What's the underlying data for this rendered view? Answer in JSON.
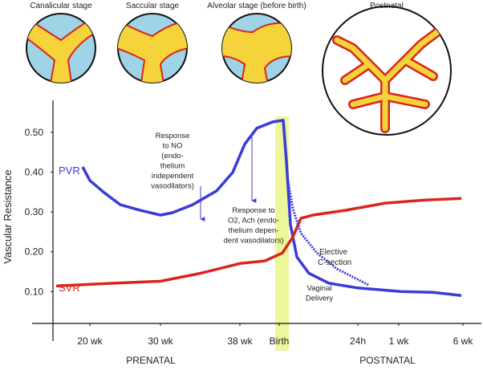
{
  "chart_data": {
    "type": "line",
    "y_label": "Vascular Resistance",
    "stages": [
      "Canalicular stage",
      "Saccular stage",
      "Alveolar stage (before birth)",
      "Postnatal"
    ],
    "xlim": [
      6.6,
      59.5
    ],
    "xticks": [
      {
        "value": 11.2,
        "label": "20 wk"
      },
      {
        "value": 20,
        "label": "30 wk"
      },
      {
        "value": 29.9,
        "label": "38 wk"
      },
      {
        "value": 34.8,
        "label": "Birth"
      },
      {
        "value": 44.6,
        "label": "24h"
      },
      {
        "value": 49.7,
        "label": "1 wk"
      },
      {
        "value": 57.7,
        "label": "6 wk"
      }
    ],
    "ylim": [
      0.02,
      0.55
    ],
    "yticks": [
      {
        "value": 0.1,
        "label": "0.10"
      },
      {
        "value": 0.2,
        "label": "0.20"
      },
      {
        "value": 0.3,
        "label": "0.30"
      },
      {
        "value": 0.4,
        "label": "0.40"
      },
      {
        "value": 0.5,
        "label": "0.50"
      }
    ],
    "period_labels": [
      "PRENATAL",
      "POSTNATAL"
    ],
    "series": [
      {
        "name": "PVR",
        "color": "#3b3bd9",
        "x": [
          10.3,
          11.2,
          13,
          15,
          17.5,
          20,
          21.5,
          24,
          27,
          29,
          30.5,
          32,
          34,
          35.3,
          35.7,
          36.2,
          37,
          38.5,
          41,
          44.6,
          50,
          54,
          57.5
        ],
        "values": [
          0.413,
          0.379,
          0.348,
          0.318,
          0.304,
          0.292,
          0.298,
          0.318,
          0.353,
          0.399,
          0.47,
          0.51,
          0.526,
          0.53,
          0.429,
          0.268,
          0.187,
          0.146,
          0.121,
          0.109,
          0.1,
          0.098,
          0.09
        ]
      },
      {
        "name": "SVR",
        "color": "#d9261c",
        "x": [
          7,
          13,
          20,
          25,
          30,
          33,
          35.2,
          36.5,
          37.5,
          39,
          43,
          48,
          53,
          57.5
        ],
        "values": [
          0.114,
          0.12,
          0.126,
          0.146,
          0.171,
          0.177,
          0.197,
          0.237,
          0.284,
          0.292,
          0.304,
          0.322,
          0.33,
          0.334
        ]
      },
      {
        "name": "Elective C-section",
        "color": "#3b3bd9",
        "x": [
          35.3,
          35.8,
          36.5,
          37.5,
          39.5,
          42,
          46
        ],
        "values": [
          0.53,
          0.389,
          0.308,
          0.247,
          0.197,
          0.157,
          0.116
        ]
      }
    ],
    "annotations": [
      {
        "lines": [
          "Response",
          "to NO",
          "(endo-",
          "thelium",
          "independent",
          "vasodilators)"
        ]
      },
      {
        "lines": [
          "Response to",
          "O2, Ach (endo-",
          "thelium depen-",
          "dent vasodilators)"
        ]
      },
      {
        "lines": [
          "Vaginal",
          "Delivery"
        ]
      }
    ]
  }
}
